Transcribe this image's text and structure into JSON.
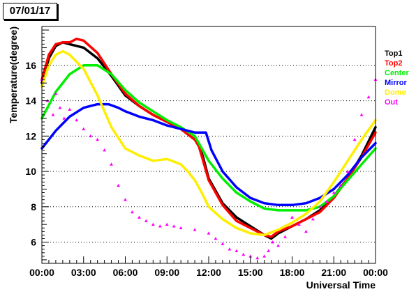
{
  "title": "07/01/17",
  "chart_data": {
    "type": "line",
    "title": "07/01/17",
    "xlabel": "Universal Time",
    "ylabel": "Temperature(degree)",
    "xlim": [
      0,
      24
    ],
    "ylim": [
      4.8,
      18.2
    ],
    "xticks": [
      0,
      3,
      6,
      9,
      12,
      15,
      18,
      21,
      24
    ],
    "xtick_labels": [
      "00:00",
      "03:00",
      "06:00",
      "09:00",
      "12:00",
      "15:00",
      "18:00",
      "21:00",
      "00:00"
    ],
    "yticks": [
      6,
      8,
      10,
      12,
      14,
      16
    ],
    "ytick_labels": [
      "6",
      "8",
      "10",
      "12",
      "14",
      "16"
    ],
    "grid": "y-dotted",
    "legend_position": "right",
    "series": [
      {
        "name": "Top1",
        "color": "#000000",
        "x": [
          0,
          0.5,
          1,
          1.5,
          2,
          3,
          4,
          5,
          6,
          7,
          8,
          9,
          10,
          11,
          11.3,
          11.6,
          12,
          12.5,
          13,
          14,
          15,
          16,
          16.5,
          17,
          18,
          19,
          20,
          21,
          22,
          23,
          24
        ],
        "y": [
          15.0,
          16.4,
          17.1,
          17.3,
          17.2,
          17.0,
          16.4,
          15.4,
          14.3,
          13.7,
          13.2,
          12.8,
          12.4,
          11.8,
          11.5,
          10.8,
          9.6,
          8.9,
          8.2,
          7.4,
          6.9,
          6.4,
          6.2,
          6.5,
          6.9,
          7.3,
          7.8,
          8.6,
          9.6,
          10.9,
          12.5
        ]
      },
      {
        "name": "Top2",
        "color": "#ff0000",
        "x": [
          0,
          0.5,
          1,
          1.5,
          2,
          2.5,
          3,
          4,
          5,
          6,
          7,
          8,
          9,
          10,
          11,
          11.3,
          11.6,
          12,
          12.5,
          13,
          14,
          15,
          16,
          16.5,
          17,
          18,
          19,
          20,
          21,
          22,
          23,
          24
        ],
        "y": [
          15.2,
          16.6,
          17.2,
          17.3,
          17.3,
          17.5,
          17.4,
          16.7,
          15.5,
          14.4,
          13.7,
          13.2,
          12.8,
          12.4,
          11.8,
          11.4,
          10.6,
          9.5,
          8.8,
          8.1,
          7.2,
          6.8,
          6.4,
          6.3,
          6.6,
          6.9,
          7.3,
          7.7,
          8.5,
          9.6,
          10.8,
          12.2
        ]
      },
      {
        "name": "Center",
        "color": "#00ee00",
        "x": [
          0,
          1,
          2,
          3,
          4,
          5,
          6,
          7,
          8,
          9,
          10,
          11,
          12,
          13,
          14,
          15,
          16,
          17,
          18,
          19,
          20,
          21,
          22,
          23,
          24
        ],
        "y": [
          13.0,
          14.5,
          15.5,
          16.0,
          16.0,
          15.5,
          14.6,
          13.9,
          13.4,
          12.9,
          12.5,
          12.0,
          10.6,
          9.6,
          8.8,
          8.3,
          7.9,
          7.8,
          7.8,
          7.8,
          8.0,
          8.6,
          9.5,
          10.4,
          11.3
        ]
      },
      {
        "name": "Mirror",
        "color": "#0000ff",
        "x": [
          0,
          1,
          2,
          3,
          4,
          4.8,
          5.5,
          6,
          7,
          8,
          9,
          10,
          11,
          11.8,
          12.2,
          13,
          14,
          15,
          16,
          17,
          18,
          19,
          20,
          21,
          22,
          23,
          24
        ],
        "y": [
          11.3,
          12.3,
          13.1,
          13.6,
          13.8,
          13.8,
          13.6,
          13.4,
          13.1,
          12.9,
          12.6,
          12.4,
          12.2,
          12.2,
          11.2,
          10.0,
          9.1,
          8.5,
          8.2,
          8.1,
          8.1,
          8.2,
          8.5,
          9.0,
          9.8,
          10.8,
          11.6
        ]
      },
      {
        "name": "Dome",
        "color": "#ffee00",
        "x": [
          0,
          0.5,
          1,
          1.5,
          2,
          3,
          4,
          5,
          6,
          7,
          8,
          9,
          10,
          10.5,
          11,
          11.5,
          12,
          13,
          14,
          15,
          16,
          17,
          18,
          19,
          20,
          21,
          22,
          23,
          24
        ],
        "y": [
          14.8,
          16.0,
          16.6,
          16.8,
          16.6,
          15.8,
          14.3,
          12.5,
          11.3,
          10.9,
          10.6,
          10.7,
          10.4,
          10.0,
          9.5,
          8.8,
          8.0,
          7.3,
          6.8,
          6.5,
          6.4,
          6.7,
          7.1,
          7.6,
          8.3,
          9.4,
          10.6,
          11.8,
          12.9
        ]
      },
      {
        "name": "Out",
        "color": "#ff00ff",
        "marker": "triangle",
        "x": [
          0,
          0.4,
          0.8,
          1.0,
          1.3,
          1.6,
          2,
          2.5,
          3,
          3.5,
          4,
          4.5,
          5,
          5.5,
          6,
          6.5,
          7,
          7.5,
          8,
          8.5,
          9,
          9.5,
          10,
          11,
          12,
          12.5,
          13,
          13.5,
          14,
          14.5,
          15,
          15.5,
          16,
          16.3,
          16.6,
          17,
          17.5,
          18,
          18.5,
          19,
          19.5,
          20,
          20.5,
          21,
          21.5,
          22,
          22.5,
          23,
          23.5,
          24
        ],
        "y": [
          15.2,
          14.0,
          13.2,
          14.4,
          13.6,
          13.0,
          13.5,
          12.9,
          12.4,
          12.0,
          11.8,
          11.2,
          10.4,
          9.2,
          8.4,
          7.7,
          7.4,
          7.2,
          7.0,
          6.9,
          7.0,
          6.9,
          6.8,
          6.7,
          6.5,
          6.2,
          5.9,
          5.6,
          5.5,
          5.3,
          5.2,
          5.1,
          5.2,
          5.5,
          6.0,
          5.8,
          6.3,
          7.4,
          7.0,
          6.6,
          7.3,
          8.0,
          8.3,
          8.8,
          9.2,
          10.0,
          11.8,
          13.2,
          14.2,
          15.2
        ]
      }
    ]
  }
}
